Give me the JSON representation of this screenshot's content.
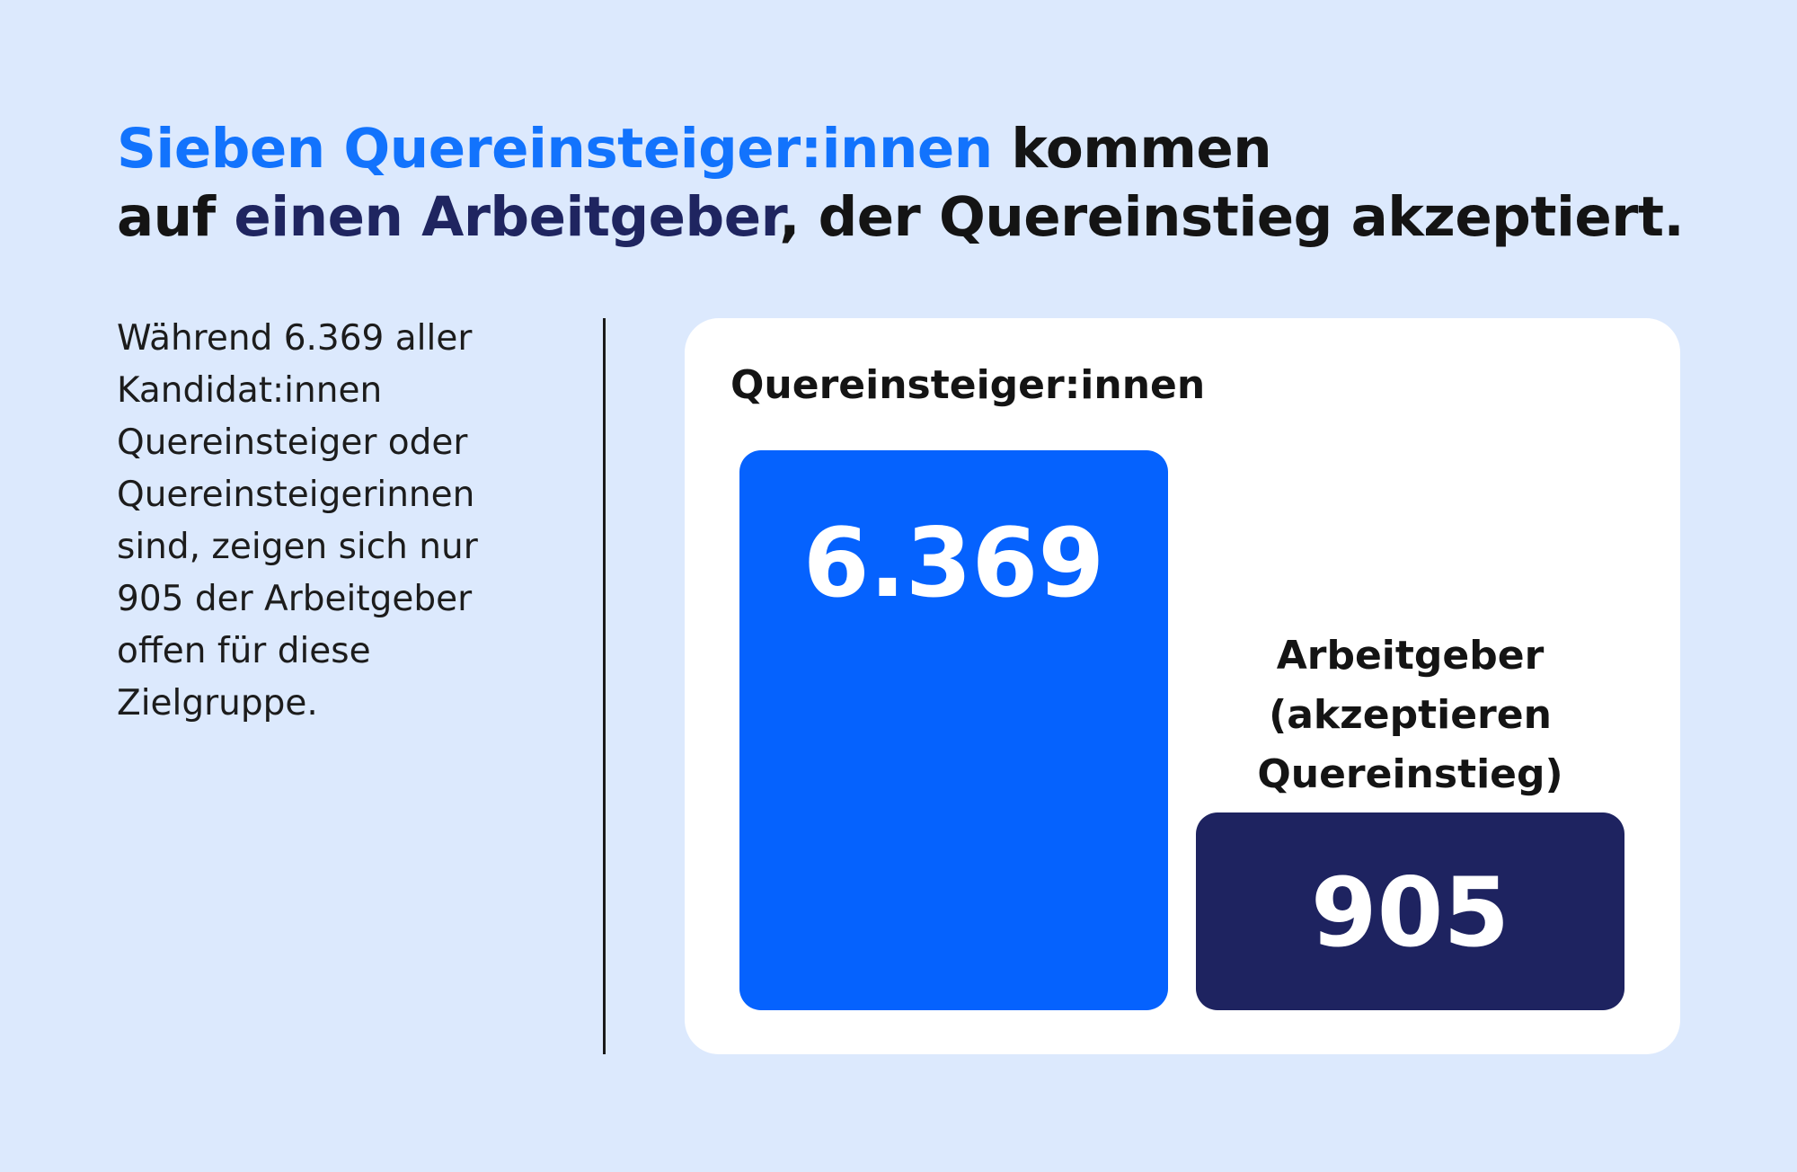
{
  "headline": {
    "line1_highlight": "Sieben Quereinsteiger:innen",
    "line1_rest": " kommen",
    "line2_start": "auf ",
    "line2_highlight": "einen Arbeitgeber",
    "line2_rest": ", der Quereinstieg akzeptiert.",
    "highlight_color": "#1273fd",
    "highlight2_color": "#1f2560"
  },
  "description": "Während 6.369 aller Kandidat:innen Quereinsteiger oder Quereinsteigerinnen sind, zeigen sich nur 905 der Arbeitgeber offen für diese Zielgruppe.",
  "chart_data": {
    "type": "bar",
    "categories": [
      "Quereinsteiger:innen",
      "Arbeitgeber (akzeptieren Quereinstieg)"
    ],
    "category_label_lines": [
      [
        "Quereinsteiger:innen"
      ],
      [
        "Arbeitgeber",
        "(akzeptieren",
        "Quereinstieg)"
      ]
    ],
    "values": [
      6369,
      905
    ],
    "value_labels": [
      "6.369",
      "905"
    ],
    "colors": [
      "#0562fe",
      "#1e2360"
    ],
    "title": "",
    "xlabel": "",
    "ylabel": ""
  }
}
